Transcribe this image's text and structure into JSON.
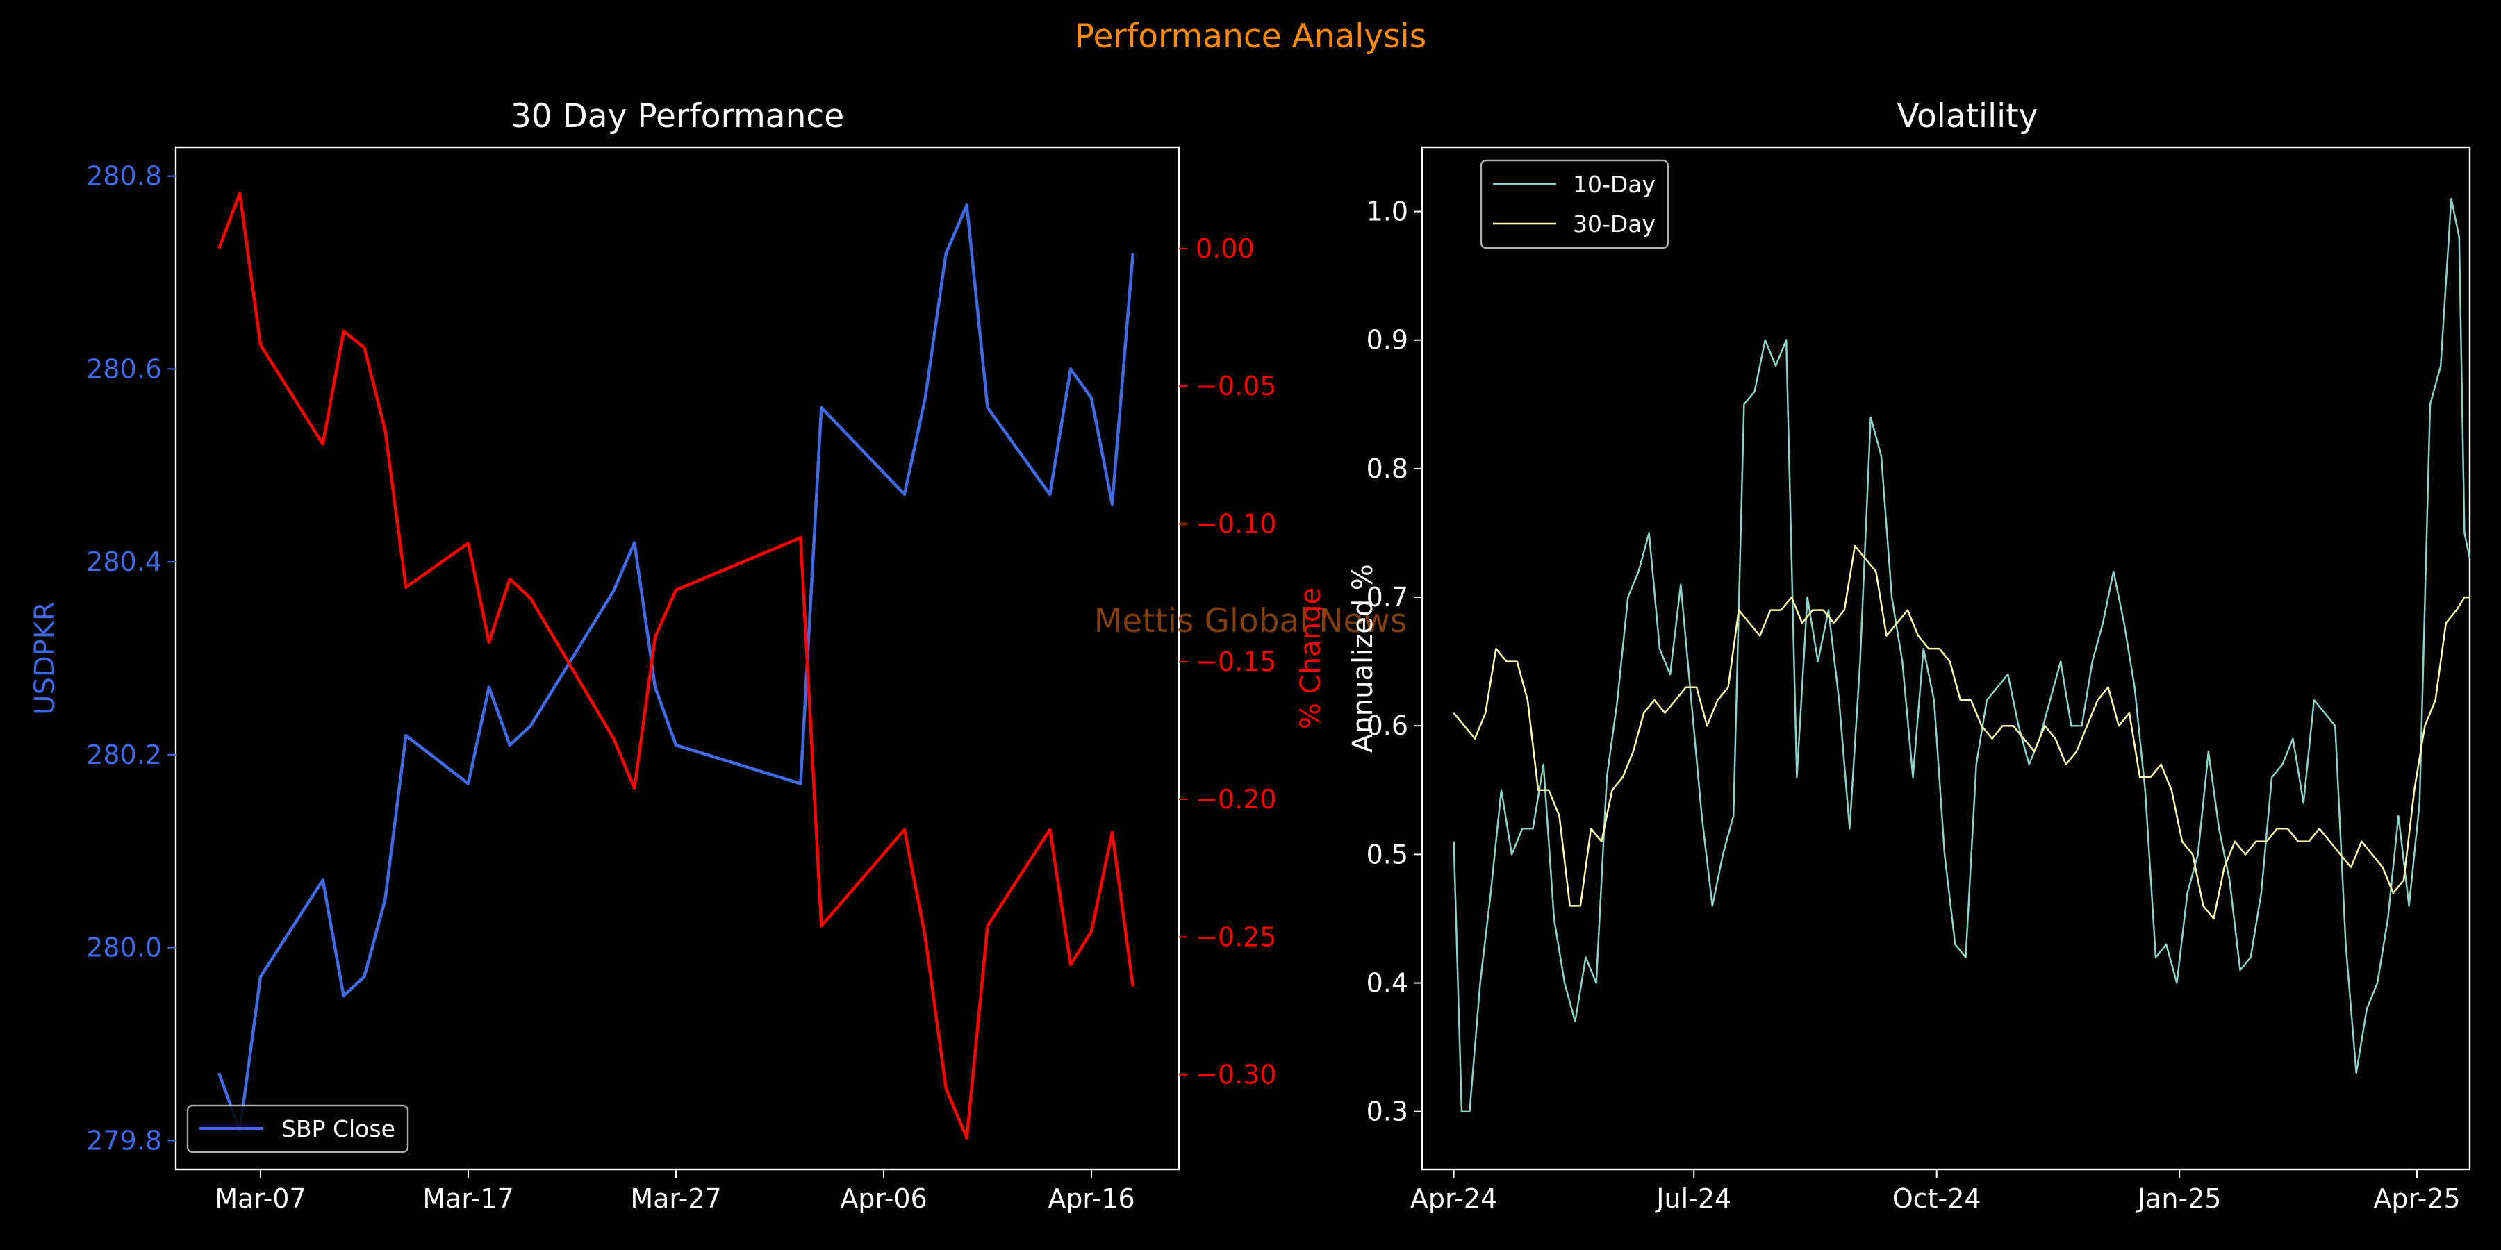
{
  "suptitle": "Performance Analysis",
  "watermark": "Mettis Global News",
  "colors": {
    "background": "#000000",
    "suptitle": "#ff8c00",
    "axes": "#ffffff",
    "price": "#4169e1",
    "pct": "#ff0000",
    "vol10": "#8dd3c7",
    "vol30": "#ffffb3",
    "watermark": "#8b4513"
  },
  "chart_data": [
    {
      "type": "line",
      "title": "30 Day Performance",
      "ylabel": "USDPKR",
      "y2label": "% Change",
      "x_ticks": [
        "Mar-07",
        "Mar-17",
        "Mar-27",
        "Apr-06",
        "Apr-16"
      ],
      "x_dates": [
        "2025-03-05",
        "2025-03-06",
        "2025-03-07",
        "2025-03-10",
        "2025-03-11",
        "2025-03-12",
        "2025-03-13",
        "2025-03-14",
        "2025-03-17",
        "2025-03-18",
        "2025-03-19",
        "2025-03-20",
        "2025-03-24",
        "2025-03-25",
        "2025-03-26",
        "2025-03-27",
        "2025-04-02",
        "2025-04-03",
        "2025-04-07",
        "2025-04-08",
        "2025-04-09",
        "2025-04-10",
        "2025-04-11",
        "2025-04-14",
        "2025-04-15",
        "2025-04-16",
        "2025-04-17",
        "2025-04-18"
      ],
      "ylim": [
        279.77,
        280.83
      ],
      "y_ticks": [
        "279.8",
        "280.0",
        "280.2",
        "280.4",
        "280.6",
        "280.8"
      ],
      "y2lim": [
        -0.3344,
        0.0368
      ],
      "y2_ticks": [
        "0.00",
        "−0.05",
        "−0.10",
        "−0.15",
        "−0.20",
        "−0.25",
        "−0.30"
      ],
      "legend_loc": "lower left",
      "series": [
        {
          "name": "SBP Close",
          "axis": "left",
          "values": [
            279.87,
            279.81,
            279.97,
            280.07,
            279.95,
            279.97,
            280.05,
            280.22,
            280.17,
            280.27,
            280.21,
            280.23,
            280.37,
            280.42,
            280.27,
            280.21,
            280.17,
            280.56,
            280.47,
            280.57,
            280.72,
            280.77,
            280.56,
            280.47,
            280.6,
            280.57,
            280.46,
            280.72
          ]
        },
        {
          "axis": "right",
          "values": [
            0.0,
            0.02,
            -0.035,
            -0.071,
            -0.03,
            -0.036,
            -0.066,
            -0.123,
            -0.107,
            -0.143,
            -0.12,
            -0.127,
            -0.178,
            -0.196,
            -0.141,
            -0.124,
            -0.105,
            -0.246,
            -0.211,
            -0.25,
            -0.305,
            -0.323,
            -0.246,
            -0.211,
            -0.26,
            -0.248,
            -0.212,
            -0.268
          ]
        }
      ]
    },
    {
      "type": "line",
      "title": "Volatility",
      "ylabel": "Annualized %",
      "x_ticks": [
        "Apr-24",
        "Jul-24",
        "Oct-24",
        "Jan-25",
        "Apr-25"
      ],
      "xlim_days": [
        -12,
        385
      ],
      "ylim": [
        0.255,
        1.05
      ],
      "y_ticks": [
        "0.3",
        "0.4",
        "0.5",
        "0.6",
        "0.7",
        "0.8",
        "0.9",
        "1.0"
      ],
      "legend_loc": "upper left",
      "series": [
        {
          "name": "10-Day",
          "points": [
            [
              0,
              0.51
            ],
            [
              3,
              0.3
            ],
            [
              6,
              0.3
            ],
            [
              10,
              0.4
            ],
            [
              14,
              0.47
            ],
            [
              18,
              0.55
            ],
            [
              22,
              0.5
            ],
            [
              26,
              0.52
            ],
            [
              30,
              0.52
            ],
            [
              34,
              0.57
            ],
            [
              38,
              0.45
            ],
            [
              42,
              0.4
            ],
            [
              46,
              0.37
            ],
            [
              50,
              0.42
            ],
            [
              54,
              0.4
            ],
            [
              58,
              0.56
            ],
            [
              62,
              0.62
            ],
            [
              66,
              0.7
            ],
            [
              70,
              0.72
            ],
            [
              74,
              0.75
            ],
            [
              78,
              0.66
            ],
            [
              82,
              0.64
            ],
            [
              86,
              0.71
            ],
            [
              90,
              0.62
            ],
            [
              94,
              0.53
            ],
            [
              98,
              0.46
            ],
            [
              102,
              0.5
            ],
            [
              106,
              0.53
            ],
            [
              110,
              0.85
            ],
            [
              114,
              0.86
            ],
            [
              118,
              0.9
            ],
            [
              122,
              0.88
            ],
            [
              126,
              0.9
            ],
            [
              130,
              0.56
            ],
            [
              134,
              0.7
            ],
            [
              138,
              0.65
            ],
            [
              142,
              0.69
            ],
            [
              146,
              0.62
            ],
            [
              150,
              0.52
            ],
            [
              154,
              0.65
            ],
            [
              158,
              0.84
            ],
            [
              162,
              0.81
            ],
            [
              166,
              0.7
            ],
            [
              170,
              0.65
            ],
            [
              174,
              0.56
            ],
            [
              178,
              0.66
            ],
            [
              182,
              0.62
            ],
            [
              186,
              0.5
            ],
            [
              190,
              0.43
            ],
            [
              194,
              0.42
            ],
            [
              198,
              0.57
            ],
            [
              202,
              0.62
            ],
            [
              206,
              0.63
            ],
            [
              210,
              0.64
            ],
            [
              214,
              0.6
            ],
            [
              218,
              0.57
            ],
            [
              222,
              0.59
            ],
            [
              226,
              0.62
            ],
            [
              230,
              0.65
            ],
            [
              234,
              0.6
            ],
            [
              238,
              0.6
            ],
            [
              242,
              0.65
            ],
            [
              246,
              0.68
            ],
            [
              250,
              0.72
            ],
            [
              254,
              0.68
            ],
            [
              258,
              0.63
            ],
            [
              262,
              0.55
            ],
            [
              266,
              0.42
            ],
            [
              270,
              0.43
            ],
            [
              274,
              0.4
            ],
            [
              278,
              0.47
            ],
            [
              282,
              0.5
            ],
            [
              286,
              0.58
            ],
            [
              290,
              0.52
            ],
            [
              294,
              0.48
            ],
            [
              298,
              0.41
            ],
            [
              302,
              0.42
            ],
            [
              306,
              0.47
            ],
            [
              310,
              0.56
            ],
            [
              314,
              0.57
            ],
            [
              318,
              0.59
            ],
            [
              322,
              0.54
            ],
            [
              326,
              0.62
            ],
            [
              330,
              0.61
            ],
            [
              334,
              0.6
            ],
            [
              338,
              0.43
            ],
            [
              342,
              0.33
            ],
            [
              346,
              0.38
            ],
            [
              350,
              0.4
            ],
            [
              354,
              0.45
            ],
            [
              358,
              0.53
            ],
            [
              362,
              0.46
            ],
            [
              366,
              0.54
            ],
            [
              370,
              0.85
            ],
            [
              374,
              0.88
            ],
            [
              378,
              1.01
            ],
            [
              381,
              0.98
            ],
            [
              383,
              0.75
            ],
            [
              385,
              0.73
            ]
          ]
        },
        {
          "name": "30-Day",
          "points": [
            [
              0,
              0.61
            ],
            [
              4,
              0.6
            ],
            [
              8,
              0.59
            ],
            [
              12,
              0.61
            ],
            [
              16,
              0.66
            ],
            [
              20,
              0.65
            ],
            [
              24,
              0.65
            ],
            [
              28,
              0.62
            ],
            [
              32,
              0.55
            ],
            [
              36,
              0.55
            ],
            [
              40,
              0.53
            ],
            [
              44,
              0.46
            ],
            [
              48,
              0.46
            ],
            [
              52,
              0.52
            ],
            [
              56,
              0.51
            ],
            [
              60,
              0.55
            ],
            [
              64,
              0.56
            ],
            [
              68,
              0.58
            ],
            [
              72,
              0.61
            ],
            [
              76,
              0.62
            ],
            [
              80,
              0.61
            ],
            [
              84,
              0.62
            ],
            [
              88,
              0.63
            ],
            [
              92,
              0.63
            ],
            [
              96,
              0.6
            ],
            [
              100,
              0.62
            ],
            [
              104,
              0.63
            ],
            [
              108,
              0.69
            ],
            [
              112,
              0.68
            ],
            [
              116,
              0.67
            ],
            [
              120,
              0.69
            ],
            [
              124,
              0.69
            ],
            [
              128,
              0.7
            ],
            [
              132,
              0.68
            ],
            [
              136,
              0.69
            ],
            [
              140,
              0.69
            ],
            [
              144,
              0.68
            ],
            [
              148,
              0.69
            ],
            [
              152,
              0.74
            ],
            [
              156,
              0.73
            ],
            [
              160,
              0.72
            ],
            [
              164,
              0.67
            ],
            [
              168,
              0.68
            ],
            [
              172,
              0.69
            ],
            [
              176,
              0.67
            ],
            [
              180,
              0.66
            ],
            [
              184,
              0.66
            ],
            [
              188,
              0.65
            ],
            [
              192,
              0.62
            ],
            [
              196,
              0.62
            ],
            [
              200,
              0.6
            ],
            [
              204,
              0.59
            ],
            [
              208,
              0.6
            ],
            [
              212,
              0.6
            ],
            [
              216,
              0.59
            ],
            [
              220,
              0.58
            ],
            [
              224,
              0.6
            ],
            [
              228,
              0.59
            ],
            [
              232,
              0.57
            ],
            [
              236,
              0.58
            ],
            [
              240,
              0.6
            ],
            [
              244,
              0.62
            ],
            [
              248,
              0.63
            ],
            [
              252,
              0.6
            ],
            [
              256,
              0.61
            ],
            [
              260,
              0.56
            ],
            [
              264,
              0.56
            ],
            [
              268,
              0.57
            ],
            [
              272,
              0.55
            ],
            [
              276,
              0.51
            ],
            [
              280,
              0.5
            ],
            [
              284,
              0.46
            ],
            [
              288,
              0.45
            ],
            [
              292,
              0.49
            ],
            [
              296,
              0.51
            ],
            [
              300,
              0.5
            ],
            [
              304,
              0.51
            ],
            [
              308,
              0.51
            ],
            [
              312,
              0.52
            ],
            [
              316,
              0.52
            ],
            [
              320,
              0.51
            ],
            [
              324,
              0.51
            ],
            [
              328,
              0.52
            ],
            [
              332,
              0.51
            ],
            [
              336,
              0.5
            ],
            [
              340,
              0.49
            ],
            [
              344,
              0.51
            ],
            [
              348,
              0.5
            ],
            [
              352,
              0.49
            ],
            [
              356,
              0.47
            ],
            [
              360,
              0.48
            ],
            [
              364,
              0.55
            ],
            [
              368,
              0.6
            ],
            [
              372,
              0.62
            ],
            [
              376,
              0.68
            ],
            [
              380,
              0.69
            ],
            [
              383,
              0.7
            ],
            [
              385,
              0.7
            ]
          ]
        }
      ]
    }
  ]
}
